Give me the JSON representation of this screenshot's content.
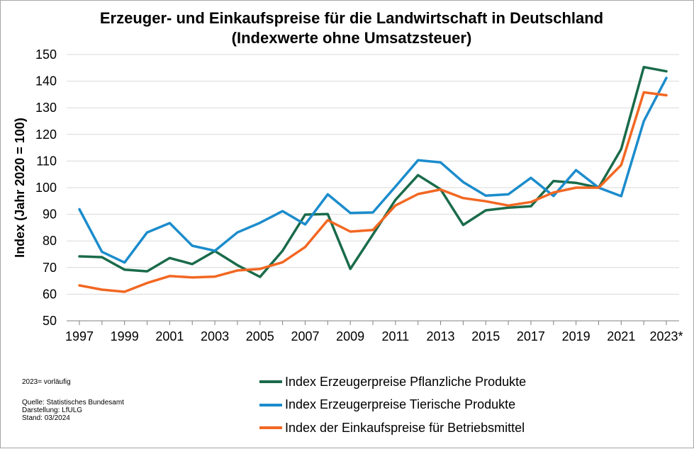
{
  "chart_data": {
    "type": "line",
    "title": "Erzeuger- und Einkaufspreise für die Landwirtschaft in Deutschland (Indexwerte ohne Umsatzsteuer)",
    "ylabel": "Index (Jahr 2020 = 100)",
    "xlabel": "",
    "ylim": [
      50,
      150
    ],
    "yticks": [
      50,
      60,
      70,
      80,
      90,
      100,
      110,
      120,
      130,
      140,
      150
    ],
    "x": [
      1997,
      1998,
      1999,
      2000,
      2001,
      2002,
      2003,
      2004,
      2005,
      2006,
      2007,
      2008,
      2009,
      2010,
      2011,
      2012,
      2013,
      2014,
      2015,
      2016,
      2017,
      2018,
      2019,
      2020,
      2021,
      2022,
      2023
    ],
    "xtick_labels": [
      "1997",
      "1999",
      "2001",
      "2003",
      "2005",
      "2007",
      "2009",
      "2011",
      "2013",
      "2015",
      "2017",
      "2019",
      "2021",
      "2023*"
    ],
    "grid": true,
    "legend_position": "bottom",
    "series": [
      {
        "name": "Index Erzeugerpreise Pflanzliche Produkte",
        "color": "#1a6b4a",
        "values": [
          74.2,
          73.9,
          69.2,
          68.6,
          73.6,
          71.3,
          76.2,
          70.9,
          66.5,
          76.3,
          89.9,
          90.1,
          69.5,
          82.4,
          95.4,
          104.7,
          99.4,
          86.0,
          91.5,
          92.5,
          93.0,
          102.5,
          101.8,
          100.0,
          114.5,
          145.3,
          143.7
        ]
      },
      {
        "name": "Index Erzeugerpreise Tierische Produkte",
        "color": "#1b8ccc",
        "values": [
          91.9,
          75.9,
          71.9,
          83.2,
          86.7,
          78.2,
          76.3,
          83.2,
          86.8,
          91.2,
          86.2,
          97.5,
          90.5,
          90.7,
          100.4,
          110.3,
          109.5,
          102.1,
          97.0,
          97.5,
          103.7,
          96.9,
          106.6,
          100.0,
          96.8,
          125.0,
          141.2
        ]
      },
      {
        "name": "Index der Einkaufspreise für Betriebsmittel",
        "color": "#f26722",
        "values": [
          63.3,
          61.7,
          60.9,
          64.2,
          66.8,
          66.3,
          66.6,
          68.9,
          69.5,
          72.0,
          77.7,
          87.8,
          83.5,
          84.1,
          93.3,
          97.6,
          99.3,
          96.1,
          94.9,
          93.3,
          94.6,
          98.2,
          100.0,
          100.0,
          108.5,
          135.8,
          134.7
        ]
      }
    ]
  },
  "notes": {
    "preliminary": "2023= vorläufig",
    "source": "Quelle: Statistisches Bundesamt",
    "layout": "Darstellung: LfULG",
    "date": "Stand: 03/2024"
  }
}
